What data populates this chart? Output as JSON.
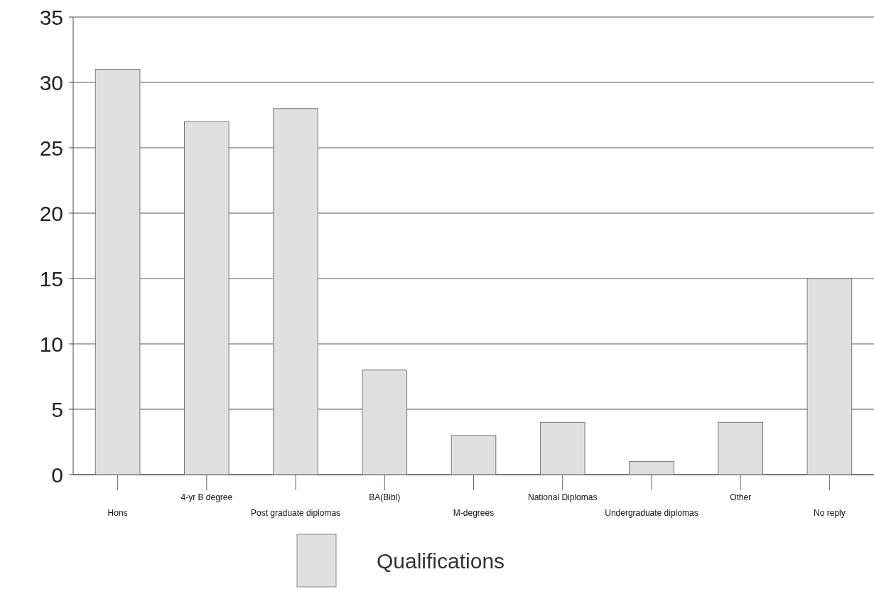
{
  "chart_data": {
    "type": "bar",
    "categories": [
      "Hons",
      "4-yr B degree",
      "Post graduate diplomas",
      "BA(Bibl)",
      "M-degrees",
      "National Diplomas",
      "Undergraduate diplomas",
      "Other",
      "No reply"
    ],
    "series": [
      {
        "name": "Qualifications",
        "color": "#e0e0e0",
        "values": [
          31,
          27,
          28,
          8,
          3,
          4,
          1,
          4,
          15
        ]
      }
    ],
    "ylim": [
      0,
      35
    ],
    "yticks": [
      0,
      5,
      10,
      15,
      20,
      25,
      30,
      35
    ],
    "grid": "y",
    "legend": "bottom"
  }
}
